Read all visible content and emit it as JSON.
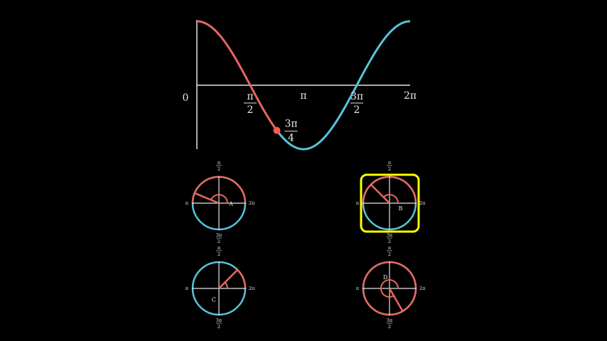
{
  "colors": {
    "background": "#000000",
    "axis": "#e6e6e6",
    "positive": "#e8675f",
    "negative": "#58c4dd",
    "highlight": "#ffff00",
    "point": "#ff5a50"
  },
  "graph": {
    "function": "cos",
    "x_range": [
      0,
      6.2832
    ],
    "y_range": [
      -1,
      1
    ],
    "origin_label": "0",
    "ticks": [
      {
        "value": 1.5708,
        "num": "π",
        "den": "2"
      },
      {
        "value": 3.1416,
        "text": "π"
      },
      {
        "value": 4.7124,
        "num": "3π",
        "den": "2"
      },
      {
        "value": 6.2832,
        "text": "2π"
      }
    ],
    "marked_point": {
      "x": 2.3562,
      "num": "3π",
      "den": "4"
    }
  },
  "circles": [
    {
      "id": "A",
      "letter": "A",
      "arc_span_deg": 180,
      "radius_angle_deg": 157.5,
      "marker_from_deg": 0,
      "marker_to_deg": 157.5,
      "highlighted": false,
      "labels": {
        "top_num": "π",
        "top_den": "2",
        "left": "π",
        "right": "2π",
        "bottom_num": "3π",
        "bottom_den": "2"
      }
    },
    {
      "id": "B",
      "letter": "B",
      "arc_span_deg": 180,
      "radius_angle_deg": 135,
      "marker_from_deg": 0,
      "marker_to_deg": 135,
      "highlighted": true,
      "labels": {
        "top_num": "π",
        "top_den": "2",
        "left": "π",
        "right": "2π",
        "bottom_num": "3π",
        "bottom_den": "2"
      }
    },
    {
      "id": "C",
      "letter": "C",
      "arc_span_deg": 45,
      "radius_angle_deg": 45,
      "marker_from_deg": 0,
      "marker_to_deg": 45,
      "highlighted": false,
      "labels": {
        "top_num": "π",
        "top_den": "2",
        "left": "π",
        "right": "2π",
        "bottom_num": "3π",
        "bottom_den": "2"
      }
    },
    {
      "id": "D",
      "letter": "D",
      "arc_span_deg": 360,
      "radius_angle_deg": 300,
      "marker_from_deg": 0,
      "marker_to_deg": 300,
      "highlighted": false,
      "labels": {
        "top_num": "π",
        "top_den": "2",
        "left": "π",
        "right": "2π",
        "bottom_num": "3π",
        "bottom_den": "2"
      }
    }
  ]
}
